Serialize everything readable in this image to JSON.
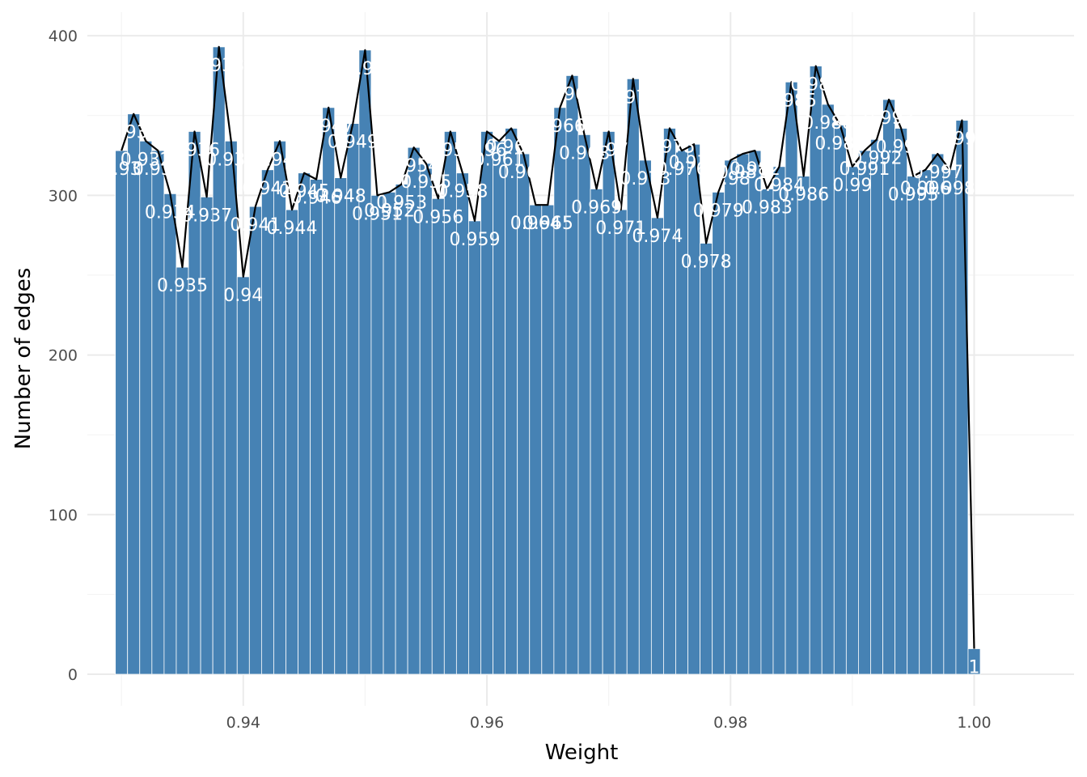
{
  "chart_data": {
    "type": "bar",
    "xlabel": "Weight",
    "ylabel": "Number of edges",
    "xlim": [
      0.9272,
      1.0082
    ],
    "ylim": [
      -19.75,
      414.75
    ],
    "x_ticks": [
      "0.94",
      "0.96",
      "0.98",
      "1.00"
    ],
    "x_tick_values": [
      0.94,
      0.96,
      0.98,
      1.0
    ],
    "y_ticks": [
      "0",
      "100",
      "200",
      "300",
      "400"
    ],
    "y_tick_values": [
      0,
      100,
      200,
      300,
      400
    ],
    "grid": true,
    "bar_color": "#4682b4",
    "line_color": "#000000",
    "bar_width": 0.001,
    "x": [
      0.93,
      0.931,
      0.932,
      0.933,
      0.934,
      0.935,
      0.936,
      0.937,
      0.938,
      0.939,
      0.94,
      0.941,
      0.942,
      0.943,
      0.944,
      0.945,
      0.946,
      0.947,
      0.948,
      0.949,
      0.95,
      0.951,
      0.952,
      0.953,
      0.954,
      0.955,
      0.956,
      0.957,
      0.958,
      0.959,
      0.96,
      0.961,
      0.962,
      0.963,
      0.964,
      0.965,
      0.966,
      0.967,
      0.968,
      0.969,
      0.97,
      0.971,
      0.972,
      0.973,
      0.974,
      0.975,
      0.976,
      0.977,
      0.978,
      0.979,
      0.98,
      0.981,
      0.982,
      0.983,
      0.984,
      0.985,
      0.986,
      0.987,
      0.988,
      0.989,
      0.99,
      0.991,
      0.992,
      0.993,
      0.994,
      0.995,
      0.996,
      0.997,
      0.998,
      0.999,
      1.0
    ],
    "values": [
      328,
      351,
      334,
      328,
      301,
      255,
      340,
      299,
      393,
      334,
      249,
      293,
      316,
      334,
      291,
      314,
      310,
      355,
      311,
      345,
      391,
      300,
      302,
      307,
      330,
      320,
      298,
      340,
      314,
      284,
      340,
      334,
      342,
      326,
      294,
      294,
      355,
      375,
      338,
      304,
      340,
      291,
      373,
      322,
      286,
      342,
      328,
      332,
      270,
      302,
      322,
      326,
      328,
      304,
      318,
      371,
      312,
      381,
      357,
      344,
      318,
      328,
      335,
      360,
      342,
      312,
      316,
      326,
      316,
      347,
      16
    ],
    "labels": [
      "0.93",
      "0.931",
      "0.932",
      "0.933",
      "0.934",
      "0.935",
      "0.936",
      "0.937",
      "0.938",
      "0.939",
      "0.94",
      "0.941",
      "0.942",
      "0.943",
      "0.944",
      "0.945",
      "0.946",
      "0.947",
      "0.948",
      "0.949",
      "0.95",
      "0.951",
      "0.952",
      "0.953",
      "0.954",
      "0.955",
      "0.956",
      "0.957",
      "0.958",
      "0.959",
      "0.96",
      "0.961",
      "0.962",
      "0.963",
      "0.964",
      "0.965",
      "0.966",
      "0.967",
      "0.968",
      "0.969",
      "0.97",
      "0.971",
      "0.972",
      "0.973",
      "0.974",
      "0.975",
      "0.976",
      "0.977",
      "0.978",
      "0.979",
      "0.98",
      "0.981",
      "0.982",
      "0.983",
      "0.984",
      "0.985",
      "0.986",
      "0.987",
      "0.988",
      "0.989",
      "0.99",
      "0.991",
      "0.992",
      "0.993",
      "0.994",
      "0.995",
      "0.996",
      "0.997",
      "0.998",
      "0.999",
      "1"
    ]
  }
}
